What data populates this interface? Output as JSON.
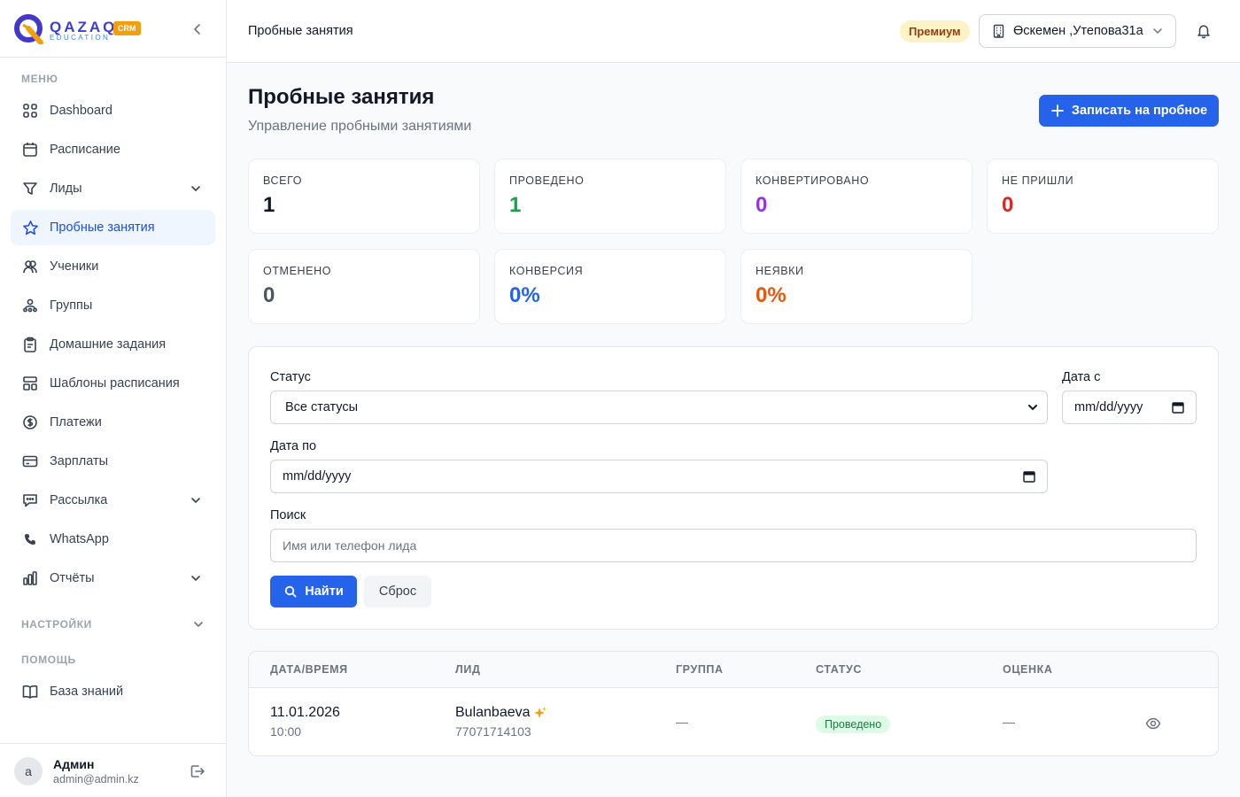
{
  "brand": {
    "name": "QAZAQ",
    "subtitle": "EDUCATION",
    "badge": "CRM"
  },
  "sidebar": {
    "menu_title": "МЕНЮ",
    "items": [
      {
        "label": "Dashboard",
        "icon": "dashboard-grid-icon"
      },
      {
        "label": "Расписание",
        "icon": "calendar-icon"
      },
      {
        "label": "Лиды",
        "icon": "filter-funnel-icon",
        "expandable": true
      },
      {
        "label": "Пробные занятия",
        "icon": "star-icon",
        "active": true
      },
      {
        "label": "Ученики",
        "icon": "users-icon"
      },
      {
        "label": "Группы",
        "icon": "group-icon"
      },
      {
        "label": "Домашние задания",
        "icon": "clipboard-icon"
      },
      {
        "label": "Шаблоны расписания",
        "icon": "template-icon"
      },
      {
        "label": "Платежи",
        "icon": "dollar-circle-icon"
      },
      {
        "label": "Зарплаты",
        "icon": "credit-card-icon"
      },
      {
        "label": "Рассылка",
        "icon": "message-icon",
        "expandable": true
      },
      {
        "label": "WhatsApp",
        "icon": "phone-icon"
      },
      {
        "label": "Отчёты",
        "icon": "bar-chart-icon",
        "expandable": true
      }
    ],
    "settings_title": "НАСТРОЙКИ",
    "help_title": "ПОМОЩЬ",
    "help_items": [
      {
        "label": "База знаний",
        "icon": "book-icon"
      }
    ]
  },
  "user": {
    "initial": "a",
    "name": "Админ",
    "email": "admin@admin.kz"
  },
  "topbar": {
    "title": "Пробные занятия",
    "plan_badge": "Премиум",
    "branch": "Өскемен ,Утепова31а"
  },
  "page": {
    "title": "Пробные занятия",
    "subtitle": "Управление пробными занятиями",
    "primary_action": "Записать на пробное"
  },
  "stats": [
    {
      "label": "ВСЕГО",
      "value": "1",
      "color": "#111827"
    },
    {
      "label": "ПРОВЕДЕНО",
      "value": "1",
      "color": "#16a34a"
    },
    {
      "label": "КОНВЕРТИРОВАНО",
      "value": "0",
      "color": "#9333ea"
    },
    {
      "label": "НЕ ПРИШЛИ",
      "value": "0",
      "color": "#dc2626"
    },
    {
      "label": "ОТМЕНЕНО",
      "value": "0",
      "color": "#4b5563"
    },
    {
      "label": "КОНВЕРСИЯ",
      "value": "0%",
      "color": "#2563eb"
    },
    {
      "label": "НЕЯВКИ",
      "value": "0%",
      "color": "#ea580c"
    }
  ],
  "filters": {
    "status_label": "Статус",
    "status_value": "Все статусы",
    "date_from_label": "Дата с",
    "date_from_value": "mm/dd/yyyy",
    "date_to_label": "Дата по",
    "date_to_value": "mm/dd/yyyy",
    "search_label": "Поиск",
    "search_placeholder": "Имя или телефон лида",
    "find_button": "Найти",
    "reset_button": "Сброс"
  },
  "table": {
    "headers": [
      "ДАТА/ВРЕМЯ",
      "ЛИД",
      "ГРУППА",
      "СТАТУС",
      "ОЦЕНКА"
    ],
    "rows": [
      {
        "date": "11.01.2026",
        "time": "10:00",
        "lead_name": "Bulanbaeva",
        "lead_phone": "77071714103",
        "group": "—",
        "status": "Проведено",
        "rating": "—"
      }
    ]
  },
  "colors": {
    "accent": "#2563eb",
    "active_bg": "#eff6ff",
    "premium_bg": "#fef3c7",
    "status_done_bg": "#dcfce7"
  }
}
